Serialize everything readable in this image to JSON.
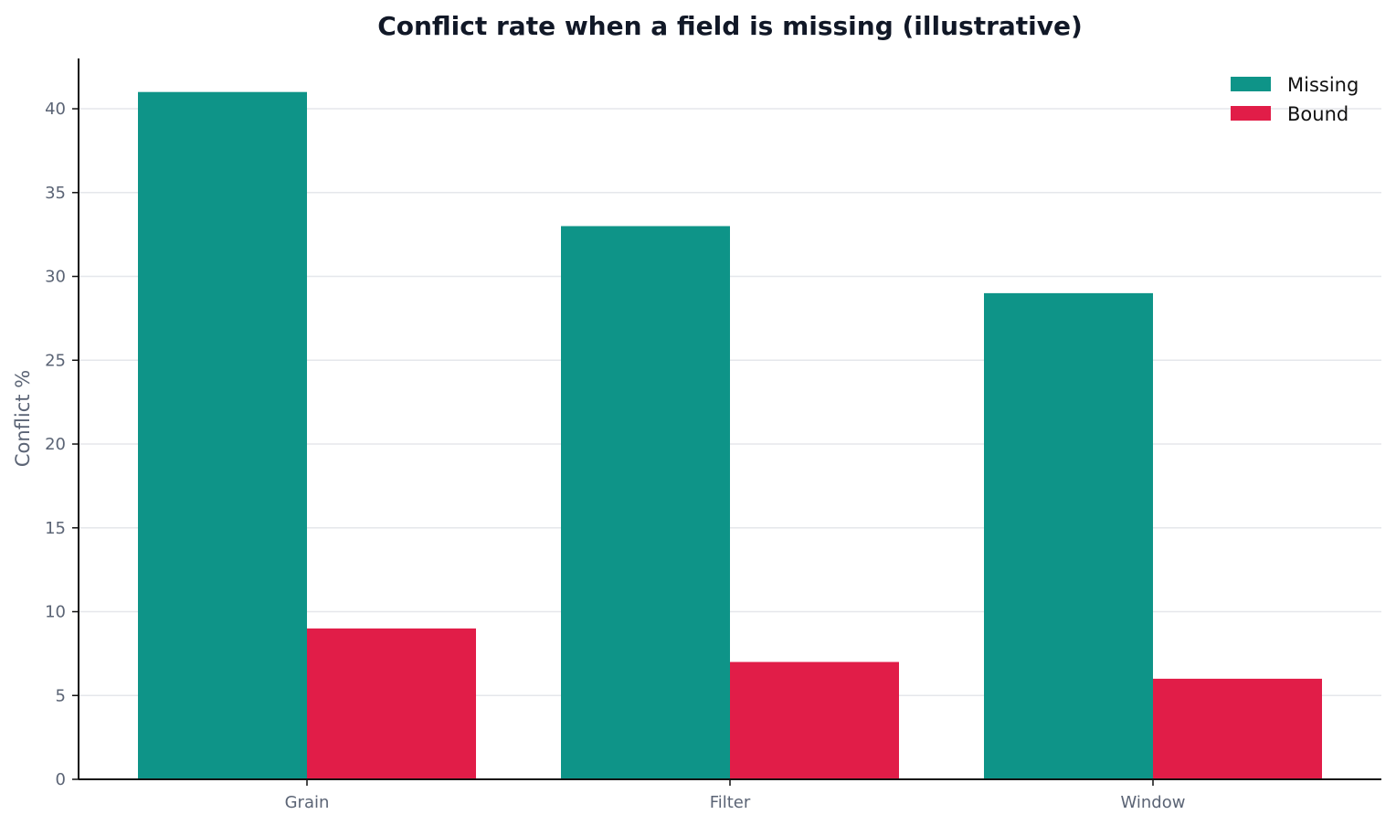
{
  "chart_data": {
    "type": "bar",
    "title": "Conflict rate when a field is missing (illustrative)",
    "xlabel": "",
    "ylabel": "Conflict %",
    "categories": [
      "Grain",
      "Filter",
      "Window"
    ],
    "series": [
      {
        "name": "Missing",
        "values": [
          41,
          33,
          29
        ],
        "color": "#0e9488"
      },
      {
        "name": "Bound",
        "values": [
          9,
          7,
          6
        ],
        "color": "#e11d48"
      }
    ],
    "ylim": [
      0,
      43
    ],
    "yticks": [
      0,
      5,
      10,
      15,
      20,
      25,
      30,
      35,
      40
    ],
    "grid": "horizontal",
    "legend": "top-right"
  }
}
